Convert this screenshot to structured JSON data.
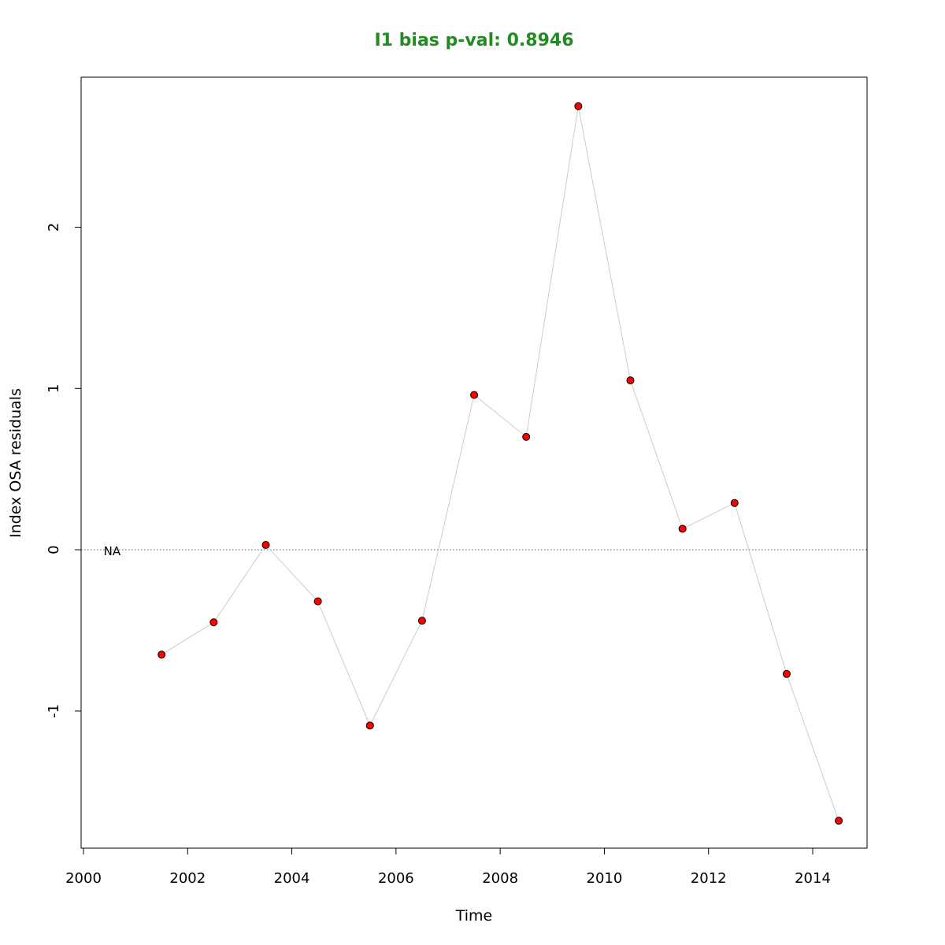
{
  "chart_data": {
    "type": "scatter",
    "title": "I1 bias p-val: 0.8946",
    "title_color": "#228B22",
    "xlabel": "Time",
    "ylabel": "Index OSA residuals",
    "xlim": [
      2000,
      2015
    ],
    "ylim": [
      -1.85,
      2.93
    ],
    "x_ticks": [
      2000,
      2002,
      2004,
      2006,
      2008,
      2010,
      2012,
      2014
    ],
    "y_ticks": [
      -1,
      0,
      1,
      2
    ],
    "reference_line": {
      "y": 0,
      "style": "dotted",
      "color": "#555555"
    },
    "annotation": {
      "text": "NA",
      "x": 2000.55,
      "y": -0.01
    },
    "point_fill": "#FF0000",
    "point_stroke": "#000000",
    "line_color": "#CCCCCC",
    "series": [
      {
        "x": [
          2001.5,
          2002.5,
          2003.5,
          2004.5,
          2005.5,
          2006.5,
          2007.5,
          2008.5,
          2009.5,
          2010.5,
          2011.5,
          2012.5,
          2013.5,
          2014.5
        ],
        "values": [
          -0.65,
          -0.45,
          0.03,
          -0.32,
          -1.09,
          -0.44,
          0.96,
          0.7,
          2.75,
          1.05,
          0.13,
          0.29,
          -0.77,
          -1.68
        ]
      }
    ]
  }
}
